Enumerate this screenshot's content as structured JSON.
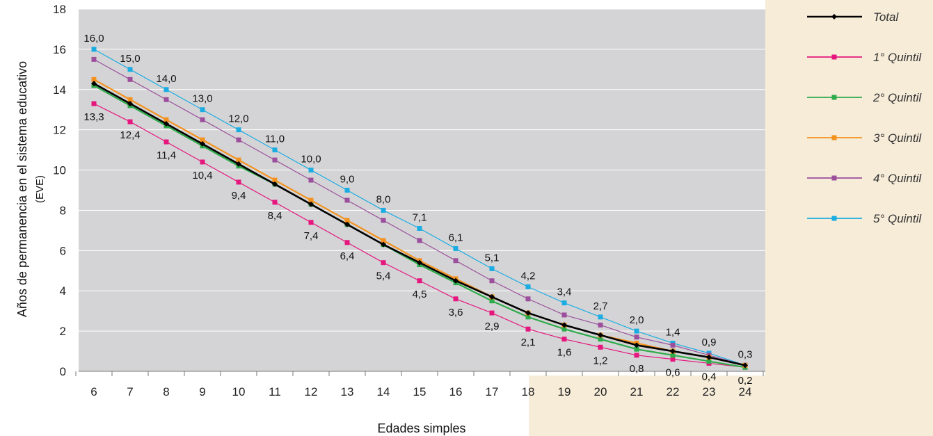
{
  "chart_data": {
    "type": "line",
    "xlabel": "Edades simples",
    "ylabel_line1": "Años de permanencia en el sistema educativo",
    "ylabel_line2": "(EVE)",
    "x": [
      6,
      7,
      8,
      9,
      10,
      11,
      12,
      13,
      14,
      15,
      16,
      17,
      18,
      19,
      20,
      21,
      22,
      23,
      24
    ],
    "ylim": [
      0,
      18
    ],
    "yticks": [
      0,
      2,
      4,
      6,
      8,
      10,
      12,
      14,
      16,
      18
    ],
    "grid": true,
    "legend_position": "right",
    "series": [
      {
        "name": "1° Quintil",
        "color": "#e5177e",
        "marker": "square",
        "values": [
          13.3,
          12.4,
          11.4,
          10.4,
          9.4,
          8.4,
          7.4,
          6.4,
          5.4,
          4.5,
          3.6,
          2.9,
          2.1,
          1.6,
          1.2,
          0.8,
          0.6,
          0.4,
          0.2
        ],
        "labels": [
          "13,3",
          "12,4",
          "11,4",
          "10,4",
          "9,4",
          "8,4",
          "7,4",
          "6,4",
          "5,4",
          "4,5",
          "3,6",
          "2,9",
          "2,1",
          "1,6",
          "1,2",
          "0,8",
          "0,6",
          "0,4",
          "0,2"
        ],
        "label_position": "below"
      },
      {
        "name": "2° Quintil",
        "color": "#2eab4a",
        "marker": "square",
        "values": [
          14.2,
          13.2,
          12.2,
          11.2,
          10.2,
          9.3,
          8.3,
          7.3,
          6.3,
          5.3,
          4.4,
          3.5,
          2.7,
          2.1,
          1.6,
          1.1,
          0.8,
          0.5,
          0.2
        ]
      },
      {
        "name": "3° Quintil",
        "color": "#f3921e",
        "marker": "square",
        "values": [
          14.5,
          13.5,
          12.5,
          11.5,
          10.5,
          9.5,
          8.5,
          7.5,
          6.5,
          5.5,
          4.6,
          3.7,
          2.9,
          2.3,
          1.8,
          1.4,
          1.0,
          0.7,
          0.3
        ]
      },
      {
        "name": "4° Quintil",
        "color": "#9b4f9c",
        "marker": "square",
        "values": [
          15.5,
          14.5,
          13.5,
          12.5,
          11.5,
          10.5,
          9.5,
          8.5,
          7.5,
          6.5,
          5.5,
          4.5,
          3.6,
          2.8,
          2.3,
          1.7,
          1.3,
          0.8,
          0.3
        ]
      },
      {
        "name": "5° Quintil",
        "color": "#1bade2",
        "marker": "square",
        "values": [
          16.0,
          15.0,
          14.0,
          13.0,
          12.0,
          11.0,
          10.0,
          9.0,
          8.0,
          7.1,
          6.1,
          5.1,
          4.2,
          3.4,
          2.7,
          2.0,
          1.4,
          0.9,
          0.3
        ],
        "labels": [
          "16,0",
          "15,0",
          "14,0",
          "13,0",
          "12,0",
          "11,0",
          "10,0",
          "9,0",
          "8,0",
          "7,1",
          "6,1",
          "5,1",
          "4,2",
          "3,4",
          "2,7",
          "2,0",
          "1,4",
          "0,9",
          "0,3"
        ],
        "label_position": "above"
      },
      {
        "name": "Total",
        "color": "#000000",
        "marker": "diamond",
        "values": [
          14.3,
          13.3,
          12.3,
          11.3,
          10.3,
          9.3,
          8.3,
          7.3,
          6.3,
          5.4,
          4.5,
          3.7,
          2.9,
          2.3,
          1.8,
          1.3,
          1.0,
          0.7,
          0.3
        ]
      }
    ],
    "legend_order": [
      "Total",
      "1° Quintil",
      "2° Quintil",
      "3° Quintil",
      "4° Quintil",
      "5° Quintil"
    ],
    "colors": {
      "plot_background": "#d4d4d6",
      "page_accent": "#f6ecd8",
      "grid": "#ffffff"
    }
  }
}
